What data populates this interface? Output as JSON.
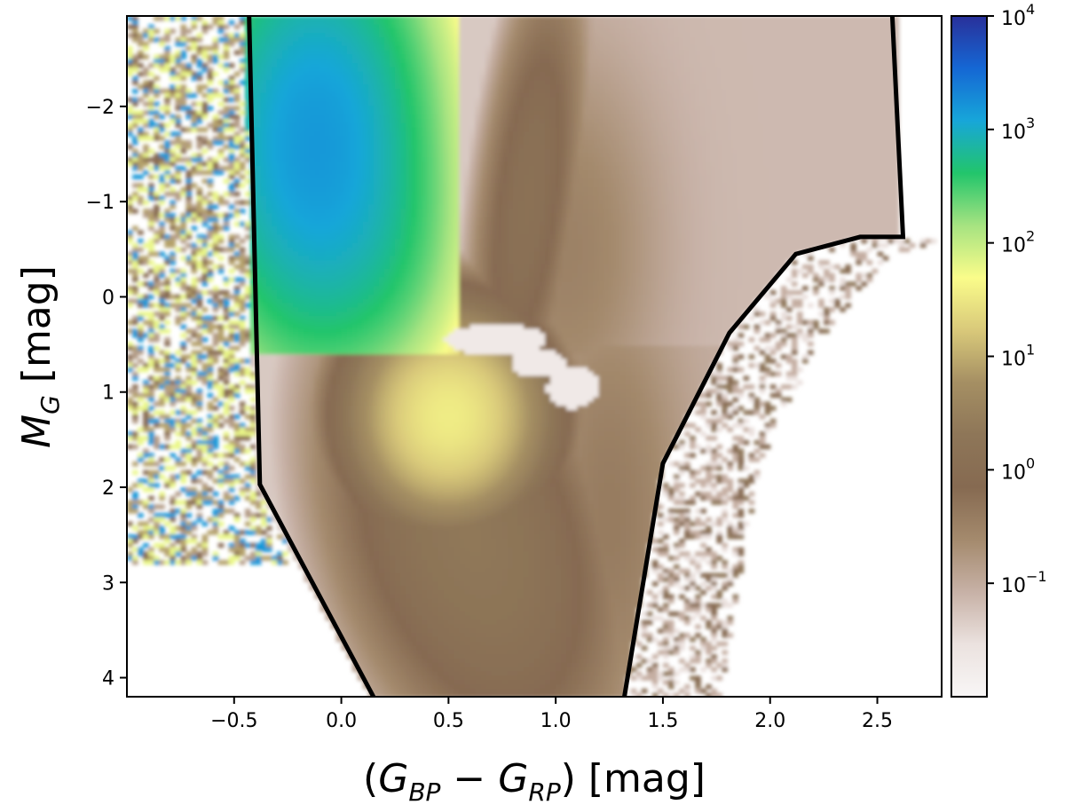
{
  "chart_data": {
    "type": "heatmap",
    "title": "",
    "xlabel": {
      "open": "(",
      "g": "G",
      "bp": "BP",
      "minus": " − ",
      "rp": "RP",
      "close": ") [mag]"
    },
    "ylabel": {
      "m": "M",
      "sub": "G",
      "rest": " [mag]"
    },
    "xlim": [
      -1.0,
      2.8
    ],
    "ylim": [
      4.2,
      -2.95
    ],
    "y_inverted": true,
    "x_ticks": [
      {
        "value": -0.5,
        "label": "−0.5"
      },
      {
        "value": 0.0,
        "label": "0.0"
      },
      {
        "value": 0.5,
        "label": "0.5"
      },
      {
        "value": 1.0,
        "label": "1.0"
      },
      {
        "value": 1.5,
        "label": "1.5"
      },
      {
        "value": 2.0,
        "label": "2.0"
      },
      {
        "value": 2.5,
        "label": "2.5"
      }
    ],
    "y_ticks": [
      {
        "value": -2,
        "label": "−2"
      },
      {
        "value": -1,
        "label": "−1"
      },
      {
        "value": 0,
        "label": "0"
      },
      {
        "value": 1,
        "label": "1"
      },
      {
        "value": 2,
        "label": "2"
      },
      {
        "value": 3,
        "label": "3"
      },
      {
        "value": 4,
        "label": "4"
      }
    ],
    "colorbar": {
      "scale": "log",
      "range": [
        0.01,
        10000
      ],
      "ticks": [
        {
          "exp": 4,
          "base": "10",
          "sup": "4"
        },
        {
          "exp": 3,
          "base": "10",
          "sup": "3"
        },
        {
          "exp": 2,
          "base": "10",
          "sup": "2"
        },
        {
          "exp": 1,
          "base": "10",
          "sup": "1"
        },
        {
          "exp": 0,
          "base": "10",
          "sup": "0"
        },
        {
          "exp": -1,
          "base": "10",
          "sup": "−1"
        }
      ],
      "colormap": "terrain_r",
      "colors": [
        "#f8f6f6",
        "#ebe2df",
        "#c7b1a6",
        "#a48a6d",
        "#866a51",
        "#8e7658",
        "#a58f63",
        "#d9c97a",
        "#fafc8a",
        "#a6e381",
        "#22c56b",
        "#17a6d9",
        "#1567d4",
        "#29309a"
      ]
    },
    "selection_boundary": {
      "left_edge": [
        [
          -0.43,
          -2.95
        ],
        [
          -0.38,
          1.97
        ],
        [
          0.15,
          4.2
        ]
      ],
      "right_edge": [
        [
          2.57,
          -2.95
        ],
        [
          2.62,
          -0.63
        ],
        [
          2.42,
          -0.63
        ],
        [
          2.12,
          -0.45
        ],
        [
          1.81,
          0.38
        ],
        [
          1.5,
          1.75
        ],
        [
          1.32,
          4.2
        ]
      ]
    },
    "features": {
      "red_clump": {
        "x": [
          0.47,
          1.22
        ],
        "y": [
          0.25,
          1.15
        ],
        "level": 0.02
      },
      "main_sequence": {
        "x_range": [
          0.2,
          1.1
        ],
        "y_range": [
          0.8,
          4.2
        ],
        "level": 30
      },
      "blue_population": {
        "x_range": [
          -0.5,
          0.4
        ],
        "y_range": [
          -2.95,
          0.5
        ],
        "level": 1000
      },
      "red_giant_region": {
        "x_range": [
          0.9,
          2.5
        ],
        "y_range": [
          -2.95,
          0.6
        ],
        "level": 0.08
      }
    }
  }
}
